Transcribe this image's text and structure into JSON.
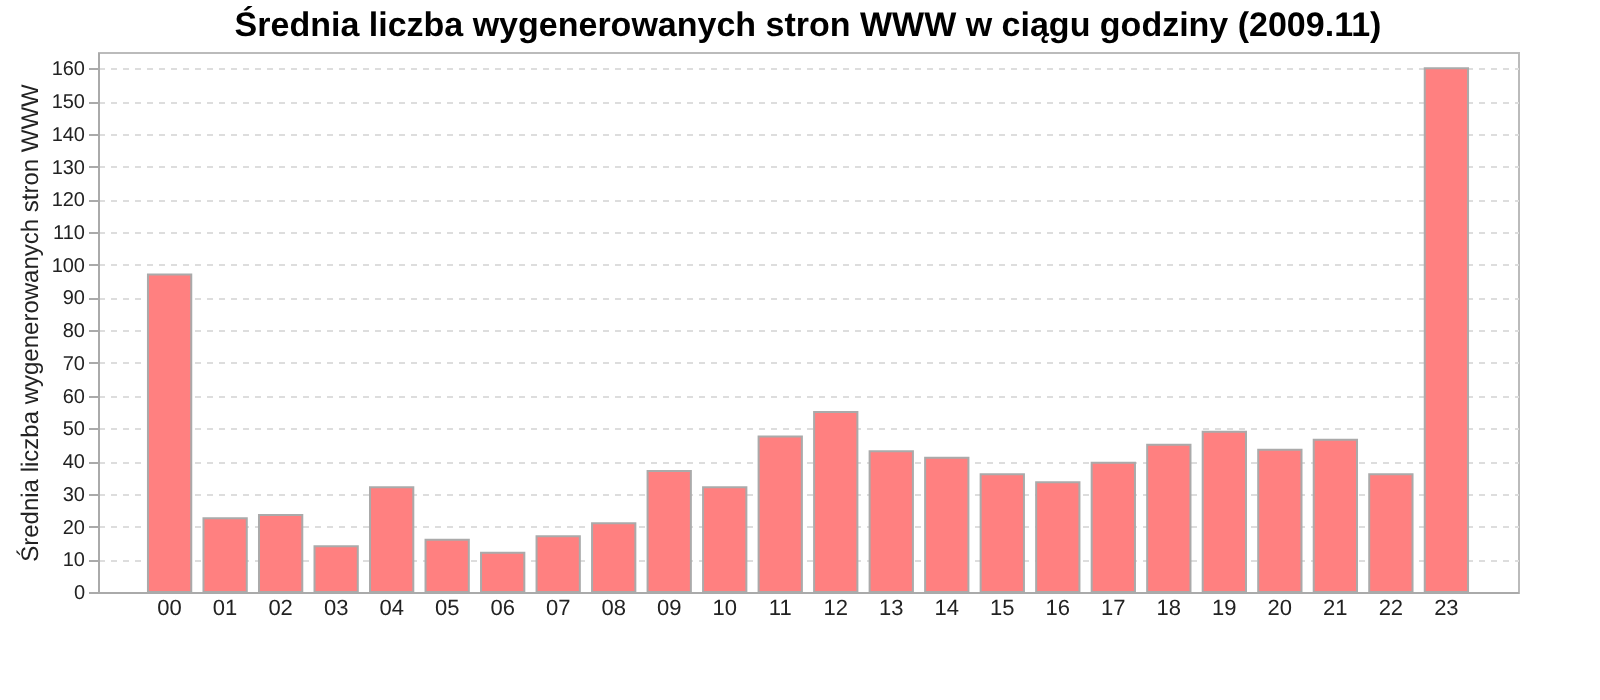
{
  "chart_data": {
    "type": "bar",
    "title": "Średnia liczba wygenerowanych stron WWW w ciągu godziny (2009.11)",
    "ylabel": "Średnia liczba wygenerowanych stron WWW",
    "categories": [
      "00",
      "01",
      "02",
      "03",
      "04",
      "05",
      "06",
      "07",
      "08",
      "09",
      "10",
      "11",
      "12",
      "13",
      "14",
      "15",
      "16",
      "17",
      "18",
      "19",
      "20",
      "21",
      "22",
      "23"
    ],
    "values": [
      97,
      22.5,
      23.5,
      14,
      32,
      16,
      12,
      17,
      21,
      37,
      32,
      47.5,
      55,
      43,
      41,
      36,
      33.5,
      39.5,
      45,
      49,
      43.5,
      46.5,
      36,
      160
    ],
    "color": "#ff8080",
    "ylim": [
      0,
      165
    ],
    "yticks": [
      0,
      10,
      20,
      30,
      40,
      50,
      60,
      70,
      80,
      90,
      100,
      110,
      120,
      130,
      140,
      150,
      160
    ],
    "grid": "y"
  }
}
